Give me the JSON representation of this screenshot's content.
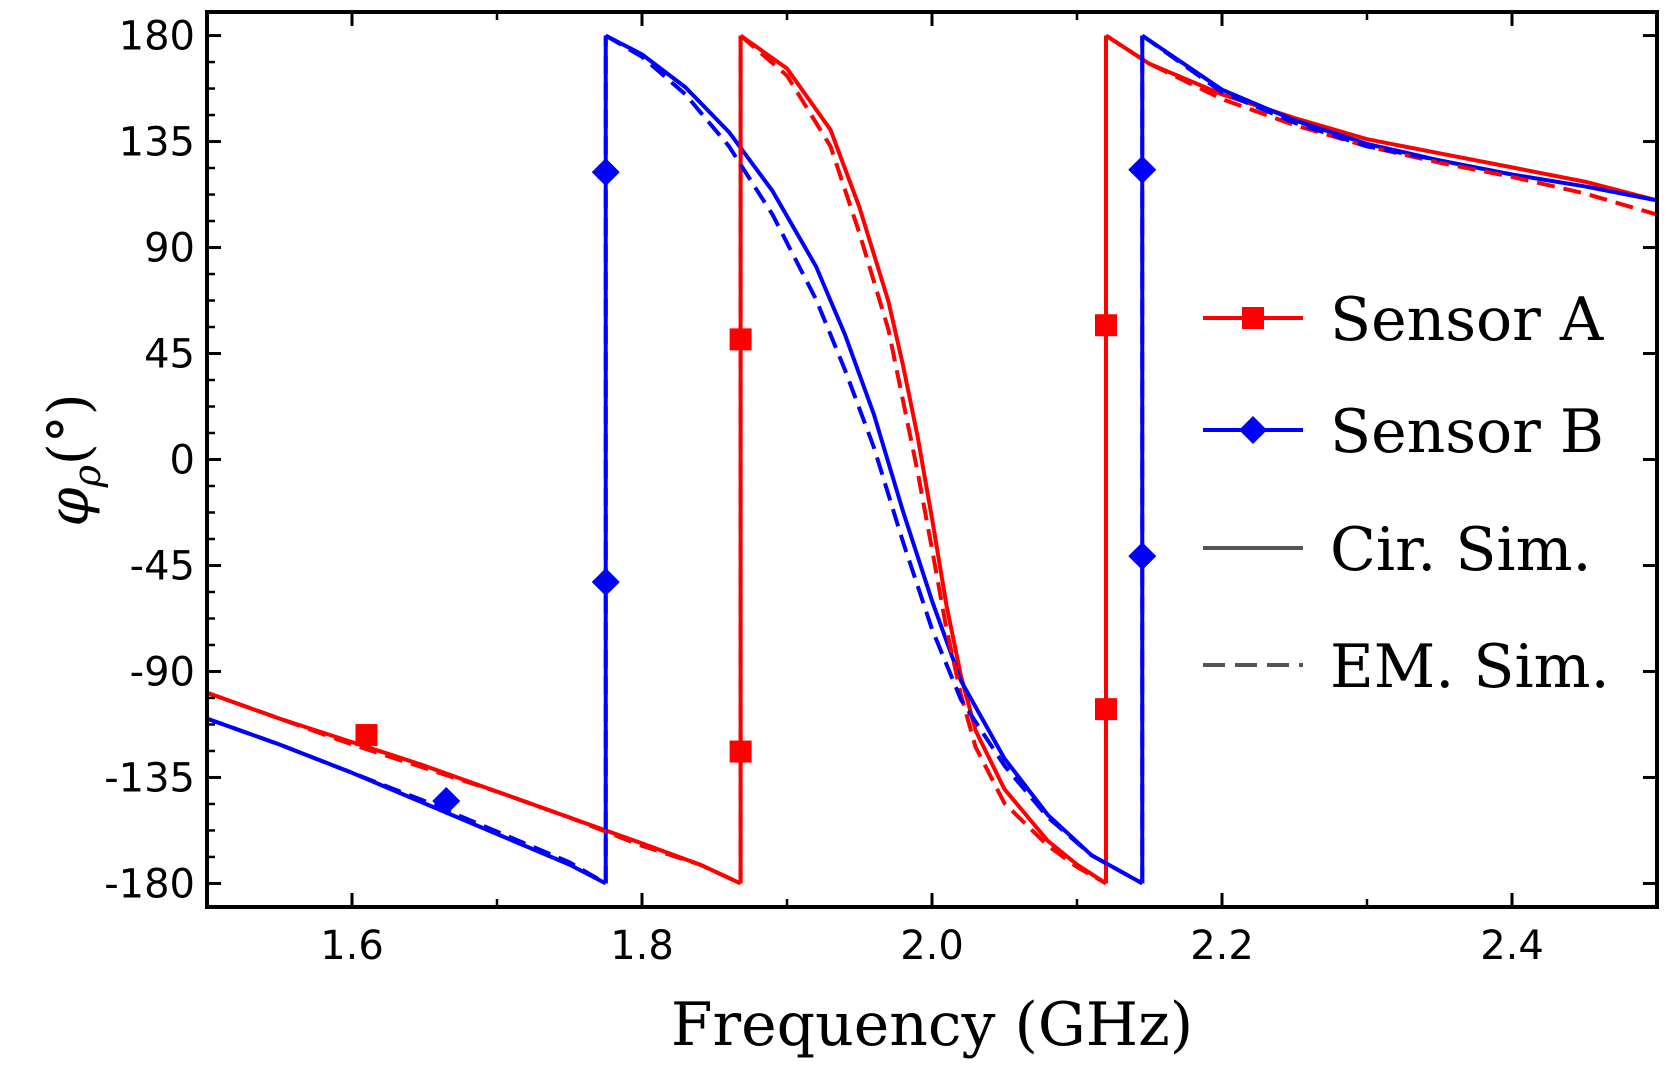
{
  "chart_data": {
    "type": "line",
    "xlabel": "Frequency (GHz)",
    "ylabel_symbol": "φ",
    "ylabel_subscript": "ρ",
    "ylabel_unit": "(°)",
    "xlim": [
      1.5,
      2.5
    ],
    "ylim": [
      -190,
      190
    ],
    "xticks": [
      1.6,
      1.8,
      2.0,
      2.2,
      2.4
    ],
    "xtick_labels": [
      "1.6",
      "1.8",
      "2.0",
      "2.2",
      "2.4"
    ],
    "xminor_ticks": [
      1.7,
      1.9,
      2.1,
      2.3
    ],
    "yticks": [
      180,
      135,
      90,
      45,
      0,
      -45,
      -90,
      -135,
      -180
    ],
    "ytick_labels": [
      "180",
      "135",
      "90",
      "45",
      "0",
      "-45",
      "-90",
      "-135",
      "-180"
    ],
    "grid": false,
    "legend_position": "right",
    "legend": [
      {
        "label": "Sensor A",
        "color": "#ff0000",
        "marker": "square",
        "dash": false
      },
      {
        "label": "Sensor B",
        "color": "#0000ff",
        "marker": "diamond",
        "dash": false
      },
      {
        "label": "Cir. Sim.",
        "color": "#555555",
        "marker": "none",
        "dash": false
      },
      {
        "label": "EM. Sim.",
        "color": "#555555",
        "marker": "none",
        "dash": true
      }
    ],
    "series": [
      {
        "name": "Sensor A Cir. Sim.",
        "sensor": "A",
        "style": "solid",
        "color": "#ff0000",
        "segments": [
          {
            "x": [
              1.5,
              1.55,
              1.6,
              1.65,
              1.7,
              1.75,
              1.8,
              1.84,
              1.868
            ],
            "y": [
              -99,
              -110,
              -120,
              -130,
              -141,
              -152,
              -163,
              -172,
              -180
            ]
          },
          {
            "x": [
              1.868,
              1.9,
              1.93,
              1.95,
              1.97,
              1.98,
              1.99,
              2.0,
              2.01,
              2.02,
              2.03,
              2.05,
              2.08,
              2.1,
              2.12
            ],
            "y": [
              180,
              166,
              140,
              107,
              67,
              40,
              10,
              -25,
              -62,
              -92,
              -115,
              -140,
              -162,
              -172,
              -180
            ]
          },
          {
            "x": [
              2.12,
              2.15,
              2.2,
              2.25,
              2.3,
              2.35,
              2.4,
              2.45,
              2.5
            ],
            "y": [
              180,
              168,
              155,
              145,
              136,
              130,
              124,
              118,
              110
            ]
          }
        ]
      },
      {
        "name": "Sensor A EM. Sim.",
        "sensor": "A",
        "style": "dash",
        "color": "#ff0000",
        "segments": [
          {
            "x": [
              1.5,
              1.55,
              1.6,
              1.65,
              1.7,
              1.75,
              1.8,
              1.84,
              1.868
            ],
            "y": [
              -99,
              -110,
              -121,
              -131,
              -141,
              -152,
              -164,
              -172,
              -180
            ]
          },
          {
            "x": [
              1.868,
              1.9,
              1.93,
              1.95,
              1.97,
              1.98,
              1.99,
              2.0,
              2.01,
              2.02,
              2.03,
              2.05,
              2.08,
              2.1,
              2.12
            ],
            "y": [
              180,
              163,
              133,
              96,
              55,
              25,
              -5,
              -38,
              -72,
              -100,
              -122,
              -146,
              -164,
              -173,
              -180
            ]
          },
          {
            "x": [
              2.12,
              2.15,
              2.2,
              2.25,
              2.3,
              2.35,
              2.4,
              2.45,
              2.5
            ],
            "y": [
              180,
              168,
              153,
              142,
              133,
              126,
              120,
              113,
              104
            ]
          }
        ]
      },
      {
        "name": "Sensor B Cir. Sim.",
        "sensor": "B",
        "style": "solid",
        "color": "#0000ff",
        "segments": [
          {
            "x": [
              1.5,
              1.55,
              1.6,
              1.65,
              1.7,
              1.75,
              1.775
            ],
            "y": [
              -110,
              -121,
              -133,
              -146,
              -159,
              -172,
              -180
            ]
          },
          {
            "x": [
              1.775,
              1.8,
              1.83,
              1.86,
              1.89,
              1.92,
              1.94,
              1.96,
              1.98,
              2.0,
              2.02,
              2.05,
              2.08,
              2.11,
              2.145
            ],
            "y": [
              180,
              172,
              158,
              139,
              114,
              82,
              53,
              19,
              -22,
              -60,
              -94,
              -127,
              -151,
              -168,
              -180
            ]
          },
          {
            "x": [
              2.145,
              2.2,
              2.25,
              2.3,
              2.35,
              2.4,
              2.45,
              2.5
            ],
            "y": [
              180,
              157,
              144,
              134,
              127,
              121,
              116,
              110
            ]
          }
        ]
      },
      {
        "name": "Sensor B EM. Sim.",
        "sensor": "B",
        "style": "dash",
        "color": "#0000ff",
        "segments": [
          {
            "x": [
              1.5,
              1.55,
              1.6,
              1.65,
              1.7,
              1.75,
              1.775
            ],
            "y": [
              -110,
              -121,
              -133,
              -145,
              -158,
              -171,
              -180
            ]
          },
          {
            "x": [
              1.775,
              1.8,
              1.83,
              1.86,
              1.89,
              1.92,
              1.94,
              1.96,
              1.98,
              2.0,
              2.02,
              2.05,
              2.08,
              2.11,
              2.145
            ],
            "y": [
              180,
              171,
              155,
              133,
              104,
              68,
              38,
              5,
              -35,
              -72,
              -102,
              -130,
              -152,
              -168,
              -180
            ]
          },
          {
            "x": [
              2.145,
              2.2,
              2.25,
              2.3,
              2.35
            ],
            "y": [
              180,
              156,
              143,
              133,
              127
            ]
          }
        ]
      }
    ],
    "markers": [
      {
        "sensor": "A",
        "shape": "square",
        "x": 1.61,
        "y": -117
      },
      {
        "sensor": "A",
        "shape": "square",
        "x": 1.868,
        "y": 51
      },
      {
        "sensor": "A",
        "shape": "square",
        "x": 1.868,
        "y": -124
      },
      {
        "sensor": "A",
        "shape": "square",
        "x": 2.12,
        "y": 57
      },
      {
        "sensor": "A",
        "shape": "square",
        "x": 2.12,
        "y": -106
      },
      {
        "sensor": "B",
        "shape": "diamond",
        "x": 1.665,
        "y": -145
      },
      {
        "sensor": "B",
        "shape": "diamond",
        "x": 1.775,
        "y": 122
      },
      {
        "sensor": "B",
        "shape": "diamond",
        "x": 1.775,
        "y": -52
      },
      {
        "sensor": "B",
        "shape": "diamond",
        "x": 2.145,
        "y": 123
      },
      {
        "sensor": "B",
        "shape": "diamond",
        "x": 2.145,
        "y": -41
      }
    ]
  }
}
